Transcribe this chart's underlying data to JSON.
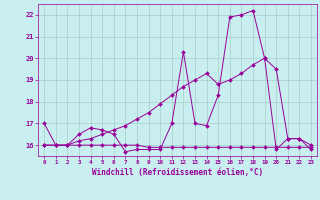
{
  "xlabel": "Windchill (Refroidissement éolien,°C)",
  "x": [
    0,
    1,
    2,
    3,
    4,
    5,
    6,
    7,
    8,
    9,
    10,
    11,
    12,
    13,
    14,
    15,
    16,
    17,
    18,
    19,
    20,
    21,
    22,
    23
  ],
  "line1": [
    17.0,
    16.0,
    16.0,
    16.5,
    16.8,
    16.7,
    16.5,
    15.7,
    15.8,
    15.8,
    15.8,
    17.0,
    20.3,
    17.0,
    16.9,
    18.3,
    21.9,
    22.0,
    22.2,
    20.0,
    15.8,
    16.3,
    16.3,
    15.8
  ],
  "line2": [
    16.0,
    16.0,
    16.0,
    16.0,
    16.0,
    16.0,
    16.0,
    16.0,
    16.0,
    15.9,
    15.9,
    15.9,
    15.9,
    15.9,
    15.9,
    15.9,
    15.9,
    15.9,
    15.9,
    15.9,
    15.9,
    15.9,
    15.9,
    15.9
  ],
  "line3": [
    16.0,
    16.0,
    16.0,
    16.2,
    16.3,
    16.5,
    16.7,
    16.9,
    17.2,
    17.5,
    17.9,
    18.3,
    18.7,
    19.0,
    19.3,
    18.8,
    19.0,
    19.3,
    19.7,
    20.0,
    19.5,
    16.3,
    16.3,
    16.0
  ],
  "line_color": "#990099",
  "bg_color": "#c8eef0",
  "grid_color": "#a8cec8",
  "ylim": [
    15.5,
    22.5
  ],
  "yticks": [
    16,
    17,
    18,
    19,
    20,
    21,
    22
  ],
  "xticks": [
    0,
    1,
    2,
    3,
    4,
    5,
    6,
    7,
    8,
    9,
    10,
    11,
    12,
    13,
    14,
    15,
    16,
    17,
    18,
    19,
    20,
    21,
    22,
    23
  ]
}
